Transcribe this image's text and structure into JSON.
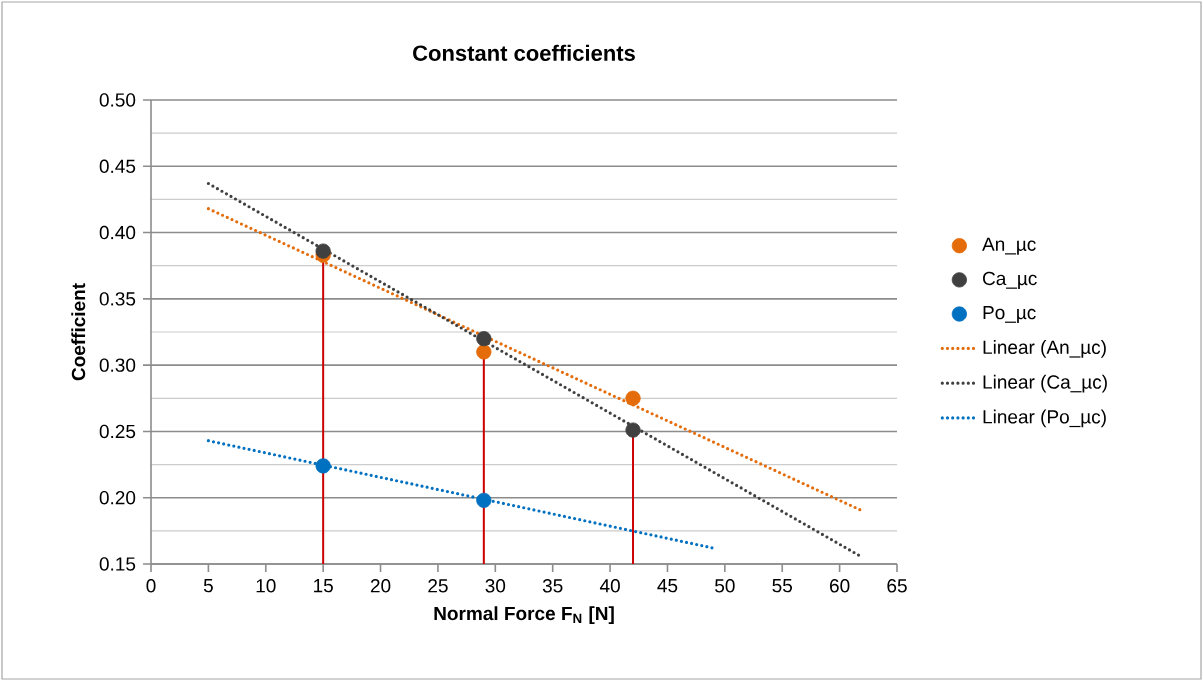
{
  "chart_data": {
    "type": "scatter",
    "title": "Constant coefficients",
    "xlabel": "Normal Force F$_{N}$ [N]",
    "ylabel": "Coefficient",
    "xlim": [
      0,
      65
    ],
    "xticks": [
      0,
      5,
      10,
      15,
      20,
      25,
      30,
      35,
      40,
      45,
      50,
      55,
      60,
      65
    ],
    "ylim": [
      0.15,
      0.5
    ],
    "yticks": [
      {
        "value": 0.15,
        "label": "0.15"
      },
      {
        "value": 0.2,
        "label": "0.20"
      },
      {
        "value": 0.25,
        "label": "0.25"
      },
      {
        "value": 0.3,
        "label": "0.30"
      },
      {
        "value": 0.35,
        "label": "0.35"
      },
      {
        "value": 0.4,
        "label": "0.40"
      },
      {
        "value": 0.45,
        "label": "0.45"
      },
      {
        "value": 0.5,
        "label": "0.50"
      }
    ],
    "grid": "y",
    "legend": "right",
    "series": [
      {
        "name": "An_µc",
        "marker": "circle",
        "color": "#e46c0a",
        "x": [
          15,
          29,
          42
        ],
        "values": [
          0.383,
          0.31,
          0.275
        ],
        "errors": [
          [
            0.15,
            0.383
          ],
          [
            0.15,
            0.31
          ],
          null
        ]
      },
      {
        "name": "Ca_µc",
        "marker": "circle",
        "color": "#404040",
        "x": [
          15,
          29,
          42
        ],
        "values": [
          0.386,
          0.32,
          0.251
        ],
        "errors": [
          null,
          null,
          [
            0.15,
            0.251
          ]
        ]
      },
      {
        "name": "Po_µc",
        "marker": "circle",
        "color": "#0070c0",
        "x": [
          15,
          29
        ],
        "values": [
          0.224,
          0.198
        ]
      },
      {
        "name": "Linear (An_µc)",
        "type": "line",
        "line_style": "dotted",
        "color": "#e46c0a",
        "x": [
          5,
          62
        ],
        "values": [
          0.418,
          0.19
        ]
      },
      {
        "name": "Linear (Ca_µc)",
        "type": "line",
        "line_style": "dotted",
        "color": "#404040",
        "x": [
          5,
          62
        ],
        "values": [
          0.437,
          0.155
        ]
      },
      {
        "name": "Linear (Po_µc)",
        "type": "line",
        "line_style": "dotted",
        "color": "#0070c0",
        "x": [
          5,
          49
        ],
        "values": [
          0.243,
          0.162
        ]
      }
    ]
  }
}
